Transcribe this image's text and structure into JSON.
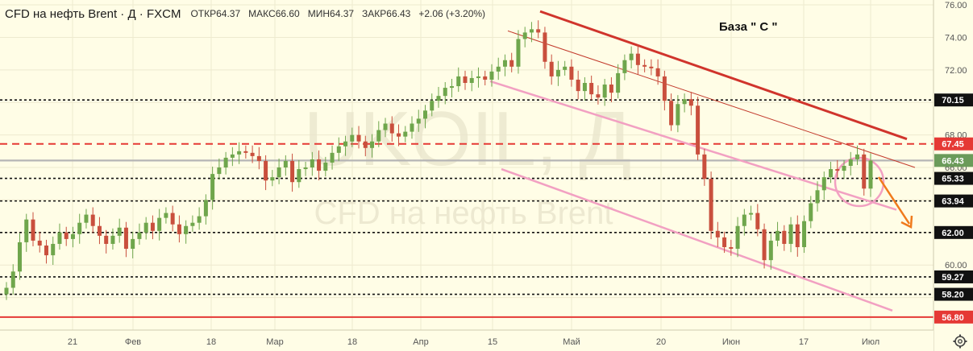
{
  "header": {
    "title": "CFD на нефть Brent · Д · FXCM",
    "open_label": "ОТКР",
    "open_value": "64.37",
    "high_label": "МАКС",
    "high_value": "66.60",
    "low_label": "МИН",
    "low_value": "64.37",
    "close_label": "ЗАКР",
    "close_value": "66.43",
    "change": "+2.06 (+3.20%)"
  },
  "watermark": {
    "symbol": "UKOIL, Д",
    "name": "CFD на нефть Brent"
  },
  "annotation": "База \" С \"",
  "colors": {
    "up": "#6fa64c",
    "down": "#c94f3d",
    "resistance": "#d32f2f",
    "channel": "#f2a0c2",
    "arrow": "#f07a1c",
    "level": "#111111",
    "red_level": "#e53935",
    "gray_level": "#b5b5b5",
    "label_bg": "#111111"
  },
  "chart_data": {
    "type": "candlestick",
    "ylim": [
      56.0,
      76.3
    ],
    "y_ticks": [
      "76.00",
      "74.00",
      "72.00",
      "68.00",
      "66.00",
      "60.00"
    ],
    "x_ticks": [
      "21",
      "Фев",
      "18",
      "Мар",
      "18",
      "Апр",
      "15",
      "Май",
      "20",
      "Июн",
      "17",
      "Июл"
    ],
    "horizontal_levels": [
      {
        "value": 70.15,
        "label": "70.15",
        "style": "dotted"
      },
      {
        "value": 67.45,
        "label": "67.45",
        "style": "red-dashed"
      },
      {
        "value": 66.43,
        "label": "66.43",
        "style": "gray-current"
      },
      {
        "value": 65.33,
        "label": "65.33",
        "style": "dotted"
      },
      {
        "value": 63.94,
        "label": "63.94",
        "style": "dotted"
      },
      {
        "value": 62.0,
        "label": "62.00",
        "style": "dotted"
      },
      {
        "value": 59.27,
        "label": "59.27",
        "style": "dotted"
      },
      {
        "value": 58.2,
        "label": "58.20",
        "style": "dotted"
      },
      {
        "value": 56.8,
        "label": "56.80",
        "style": "red-solid"
      }
    ],
    "candles_close": [
      58.6,
      59.6,
      61.4,
      62.8,
      61.5,
      61.2,
      60.6,
      61.3,
      62.0,
      61.6,
      61.9,
      62.6,
      63.1,
      62.4,
      61.8,
      61.3,
      61.8,
      62.3,
      61.0,
      61.6,
      62.0,
      62.6,
      62.1,
      62.9,
      63.2,
      62.5,
      61.9,
      62.4,
      62.6,
      63.0,
      64.0,
      65.6,
      66.0,
      66.6,
      66.8,
      67.0,
      66.9,
      66.7,
      66.4,
      65.2,
      65.4,
      66.0,
      66.4,
      65.1,
      65.9,
      66.0,
      66.5,
      65.8,
      66.3,
      66.9,
      67.3,
      67.6,
      68.0,
      67.6,
      67.2,
      67.6,
      68.3,
      68.7,
      68.1,
      67.9,
      68.2,
      68.7,
      69.0,
      69.5,
      70.1,
      70.4,
      70.9,
      71.0,
      71.6,
      71.2,
      71.5,
      71.6,
      71.4,
      71.9,
      72.2,
      72.6,
      72.2,
      73.9,
      74.3,
      74.5,
      74.3,
      72.5,
      71.6,
      72.0,
      72.2,
      71.4,
      70.7,
      71.2,
      70.5,
      70.3,
      71.1,
      70.6,
      71.8,
      72.6,
      73.0,
      72.3,
      72.2,
      72.1,
      71.6,
      70.1,
      68.6,
      69.9,
      70.2,
      69.8,
      66.8,
      65.3,
      62.1,
      61.7,
      61.1,
      61.0,
      62.4,
      63.1,
      63.2,
      62.2,
      60.3,
      61.5,
      62.1,
      61.3,
      62.5,
      61.1,
      62.7,
      63.8,
      64.6,
      65.4,
      65.9,
      65.8,
      66.1,
      66.5,
      66.8,
      64.7,
      66.43
    ],
    "channel_upper": [
      [
        74.9,
        68.6
      ]
    ],
    "note": "Resistance line from ~74.9 (late Apr) to ~67.8 (Jul); descending channel with lower bound ~65.8 to ~60.5"
  }
}
